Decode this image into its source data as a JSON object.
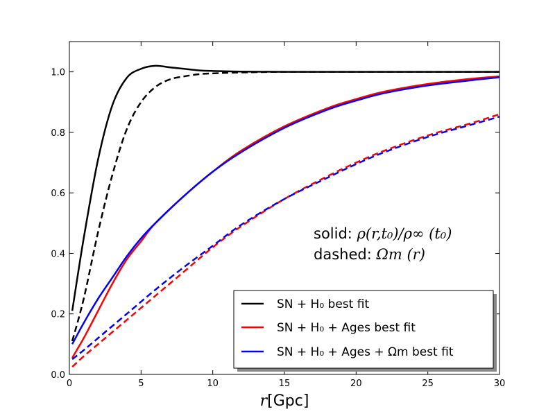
{
  "chart_data": {
    "type": "line",
    "xlabel": "r[Gpc]",
    "xlabel_math": "r",
    "xlabel_text": "[Gpc]",
    "xlim": [
      0,
      30
    ],
    "ylim": [
      0,
      1.1
    ],
    "xticks": [
      0,
      5,
      10,
      15,
      20,
      25,
      30
    ],
    "yticks": [
      0.0,
      0.2,
      0.4,
      0.6,
      0.8,
      1.0
    ],
    "xtick_labels": [
      "0",
      "5",
      "10",
      "15",
      "20",
      "25",
      "30"
    ],
    "ytick_labels": [
      "0.0",
      "0.2",
      "0.4",
      "0.6",
      "0.8",
      "1.0"
    ],
    "grid": false,
    "legend_position": "bottom-right",
    "annotation": {
      "solid_label": "solid:",
      "solid_formula": "ρ(r,t₀)/ρ∞ (t₀)",
      "dashed_label": "dashed:",
      "dashed_formula": "Ωm (r)"
    },
    "legend": [
      {
        "color": "#000000",
        "text": "SN + H₀  best fit"
      },
      {
        "color": "#ff0000",
        "text": "SN + H₀  + Ages best fit"
      },
      {
        "color": "#0000ff",
        "text": "SN + H₀  + Ages + Ωm  best fit"
      }
    ],
    "series": [
      {
        "color": "#000000",
        "style": "solid",
        "x": [
          0.2,
          1,
          2,
          3,
          4,
          5,
          6,
          7,
          8,
          9,
          10,
          12,
          15,
          20,
          25,
          30
        ],
        "y": [
          0.21,
          0.45,
          0.71,
          0.89,
          0.98,
          1.01,
          1.02,
          1.015,
          1.01,
          1.005,
          1.003,
          1.001,
          1.0,
          1.0,
          1.0,
          1.0
        ]
      },
      {
        "color": "#000000",
        "style": "dashed",
        "x": [
          0.2,
          1,
          2,
          3,
          4,
          5,
          6,
          7,
          8,
          9,
          10,
          12,
          15,
          20,
          25,
          30
        ],
        "y": [
          0.11,
          0.25,
          0.47,
          0.66,
          0.81,
          0.9,
          0.95,
          0.975,
          0.985,
          0.992,
          0.995,
          0.998,
          1.0,
          1.0,
          1.0,
          1.0
        ]
      },
      {
        "color": "#ff0000",
        "style": "solid",
        "x": [
          0.2,
          1,
          2,
          3,
          4,
          5,
          6,
          8,
          10,
          12,
          15,
          18,
          20,
          22,
          25,
          28,
          30
        ],
        "y": [
          0.055,
          0.12,
          0.21,
          0.3,
          0.38,
          0.44,
          0.5,
          0.59,
          0.67,
          0.74,
          0.82,
          0.88,
          0.91,
          0.935,
          0.96,
          0.977,
          0.985
        ]
      },
      {
        "color": "#0000ff",
        "style": "solid",
        "x": [
          0.2,
          1,
          2,
          3,
          4,
          5,
          6,
          8,
          10,
          12,
          15,
          18,
          20,
          22,
          25,
          28,
          30
        ],
        "y": [
          0.1,
          0.17,
          0.25,
          0.32,
          0.39,
          0.45,
          0.5,
          0.59,
          0.67,
          0.735,
          0.815,
          0.875,
          0.905,
          0.93,
          0.955,
          0.972,
          0.982
        ]
      },
      {
        "color": "#ff0000",
        "style": "dashed",
        "x": [
          0.2,
          1,
          2,
          4,
          6,
          8,
          10,
          12,
          15,
          18,
          20,
          22,
          25,
          28,
          30
        ],
        "y": [
          0.025,
          0.06,
          0.1,
          0.18,
          0.26,
          0.34,
          0.42,
          0.49,
          0.58,
          0.655,
          0.7,
          0.74,
          0.79,
          0.83,
          0.86
        ]
      },
      {
        "color": "#0000ff",
        "style": "dashed",
        "x": [
          0.2,
          1,
          2,
          4,
          6,
          8,
          10,
          12,
          15,
          18,
          20,
          22,
          25,
          28,
          30
        ],
        "y": [
          0.05,
          0.08,
          0.12,
          0.2,
          0.28,
          0.355,
          0.425,
          0.495,
          0.58,
          0.65,
          0.695,
          0.735,
          0.785,
          0.825,
          0.852
        ]
      }
    ]
  }
}
